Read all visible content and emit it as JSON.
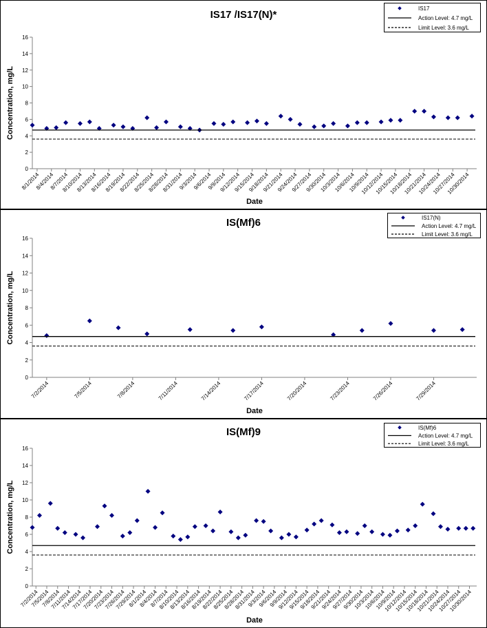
{
  "chart_data": [
    {
      "type": "scatter",
      "title": "IS17 /IS17(N)*",
      "xlabel": "Date",
      "ylabel": "Concentration, mg/L",
      "ylim": [
        0,
        16
      ],
      "yticks": [
        "0",
        "2",
        "4",
        "6",
        "8",
        "10",
        "12",
        "14",
        "16"
      ],
      "xlim": [
        "2014-07-31",
        "2014-11-01"
      ],
      "x_tick_labels": [
        "8/1/2014",
        "8/4/2014",
        "8/7/2014",
        "8/10/2014",
        "8/13/2014",
        "8/16/2014",
        "8/19/2014",
        "8/22/2014",
        "8/25/2014",
        "8/28/2014",
        "8/31/2014",
        "9/3/2014",
        "9/6/2014",
        "9/9/2014",
        "9/12/2014",
        "9/15/2014",
        "9/18/2014",
        "9/21/2014",
        "9/24/2014",
        "9/27/2014",
        "9/30/2014",
        "10/3/2014",
        "10/6/2014",
        "10/9/2014",
        "10/12/2014",
        "10/15/2014",
        "10/18/2014",
        "10/21/2014",
        "10/24/2014",
        "10/27/2014",
        "10/30/2014"
      ],
      "x_tick_dates": [
        "2014-08-01",
        "2014-08-04",
        "2014-08-07",
        "2014-08-10",
        "2014-08-13",
        "2014-08-16",
        "2014-08-19",
        "2014-08-22",
        "2014-08-25",
        "2014-08-28",
        "2014-08-31",
        "2014-09-03",
        "2014-09-06",
        "2014-09-09",
        "2014-09-12",
        "2014-09-15",
        "2014-09-18",
        "2014-09-21",
        "2014-09-24",
        "2014-09-27",
        "2014-09-30",
        "2014-10-03",
        "2014-10-06",
        "2014-10-09",
        "2014-10-12",
        "2014-10-15",
        "2014-10-18",
        "2014-10-21",
        "2014-10-24",
        "2014-10-27",
        "2014-10-30"
      ],
      "grid": false,
      "legend_position": "top-right",
      "series": [
        {
          "name": "IS17",
          "kind": "points",
          "color": "#000080",
          "x": [
            "2014-07-31",
            "2014-08-03",
            "2014-08-05",
            "2014-08-07",
            "2014-08-10",
            "2014-08-12",
            "2014-08-14",
            "2014-08-17",
            "2014-08-19",
            "2014-08-21",
            "2014-08-24",
            "2014-08-26",
            "2014-08-28",
            "2014-08-31",
            "2014-09-02",
            "2014-09-04",
            "2014-09-07",
            "2014-09-09",
            "2014-09-11",
            "2014-09-14",
            "2014-09-16",
            "2014-09-18",
            "2014-09-21",
            "2014-09-23",
            "2014-09-25",
            "2014-09-28",
            "2014-09-30",
            "2014-10-02",
            "2014-10-05",
            "2014-10-07",
            "2014-10-09",
            "2014-10-12",
            "2014-10-14",
            "2014-10-16",
            "2014-10-19",
            "2014-10-21",
            "2014-10-23",
            "2014-10-26",
            "2014-10-28",
            "2014-10-31"
          ],
          "y": [
            5.3,
            4.9,
            5.0,
            5.6,
            5.5,
            5.7,
            4.9,
            5.3,
            5.1,
            4.9,
            6.2,
            5.0,
            5.7,
            5.1,
            4.9,
            4.7,
            5.5,
            5.4,
            5.7,
            5.6,
            5.8,
            5.5,
            6.4,
            6.0,
            5.4,
            5.1,
            5.2,
            5.5,
            5.2,
            5.6,
            5.6,
            5.7,
            5.9,
            5.9,
            7.0,
            7.0,
            6.3,
            6.2,
            6.2,
            6.4
          ]
        },
        {
          "name": "Action Level: 4.7 mg/L",
          "kind": "hline",
          "style": "solid",
          "y": 4.7,
          "color": "#000000"
        },
        {
          "name": "Limit Level: 3.6 mg/L",
          "kind": "hline",
          "style": "dashed",
          "y": 3.6,
          "color": "#000000"
        }
      ]
    },
    {
      "type": "scatter",
      "title": "IS(Mf)6",
      "xlabel": "Date",
      "ylabel": "Concentration, mg/L",
      "ylim": [
        0,
        16
      ],
      "yticks": [
        "0",
        "2",
        "4",
        "6",
        "8",
        "10",
        "12",
        "14",
        "16"
      ],
      "xlim": [
        "2014-07-01",
        "2014-08-01"
      ],
      "x_tick_labels": [
        "7/2/2014",
        "7/5/2014",
        "7/8/2014",
        "7/11/2014",
        "7/14/2014",
        "7/17/2014",
        "7/20/2014",
        "7/23/2014",
        "7/26/2014",
        "7/29/2014"
      ],
      "x_tick_dates": [
        "2014-07-02",
        "2014-07-05",
        "2014-07-08",
        "2014-07-11",
        "2014-07-14",
        "2014-07-17",
        "2014-07-20",
        "2014-07-23",
        "2014-07-26",
        "2014-07-29"
      ],
      "grid": false,
      "legend_position": "top-right",
      "series": [
        {
          "name": "IS17(N)",
          "kind": "points",
          "color": "#000080",
          "x": [
            "2014-07-02",
            "2014-07-05",
            "2014-07-07",
            "2014-07-09",
            "2014-07-12",
            "2014-07-15",
            "2014-07-17",
            "2014-07-22",
            "2014-07-24",
            "2014-07-26",
            "2014-07-29",
            "2014-07-31"
          ],
          "y": [
            4.8,
            6.5,
            5.7,
            5.0,
            5.5,
            5.4,
            5.8,
            4.9,
            5.4,
            6.2,
            5.4,
            5.5
          ]
        },
        {
          "name": "Action Level: 4.7 mg/L",
          "kind": "hline",
          "style": "solid",
          "y": 4.7,
          "color": "#000000"
        },
        {
          "name": "Limit Level: 3.6 mg/L",
          "kind": "hline",
          "style": "dashed",
          "y": 3.6,
          "color": "#000000"
        }
      ]
    },
    {
      "type": "scatter",
      "title": "IS(Mf)9",
      "xlabel": "Date",
      "ylabel": "Concentration, mg/L",
      "ylim": [
        0,
        16
      ],
      "yticks": [
        "0",
        "2",
        "4",
        "6",
        "8",
        "10",
        "12",
        "14",
        "16"
      ],
      "xlim": [
        "2014-07-01",
        "2014-11-01"
      ],
      "x_tick_labels": [
        "7/2/2014",
        "7/5/2014",
        "7/8/2014",
        "7/11/2014",
        "7/14/2014",
        "7/17/2014",
        "7/20/2014",
        "7/23/2014",
        "7/26/2014",
        "7/29/2014",
        "8/1/2014",
        "8/4/2014",
        "8/7/2014",
        "8/10/2014",
        "8/13/2014",
        "8/16/2014",
        "8/19/2014",
        "8/22/2014",
        "8/25/2014",
        "8/28/2014",
        "8/31/2014",
        "9/3/2014",
        "9/6/2014",
        "9/9/2014",
        "9/12/2014",
        "9/15/2014",
        "9/18/2014",
        "9/21/2014",
        "9/24/2014",
        "9/27/2014",
        "9/30/2014",
        "10/3/2014",
        "10/6/2014",
        "10/9/2014",
        "10/12/2014",
        "10/15/2014",
        "10/18/2014",
        "10/21/2014",
        "10/24/2014",
        "10/27/2014",
        "10/30/2014"
      ],
      "x_tick_dates": [
        "2014-07-02",
        "2014-07-05",
        "2014-07-08",
        "2014-07-11",
        "2014-07-14",
        "2014-07-17",
        "2014-07-20",
        "2014-07-23",
        "2014-07-26",
        "2014-07-29",
        "2014-08-01",
        "2014-08-04",
        "2014-08-07",
        "2014-08-10",
        "2014-08-13",
        "2014-08-16",
        "2014-08-19",
        "2014-08-22",
        "2014-08-25",
        "2014-08-28",
        "2014-08-31",
        "2014-09-03",
        "2014-09-06",
        "2014-09-09",
        "2014-09-12",
        "2014-09-15",
        "2014-09-18",
        "2014-09-21",
        "2014-09-24",
        "2014-09-27",
        "2014-09-30",
        "2014-10-03",
        "2014-10-06",
        "2014-10-09",
        "2014-10-12",
        "2014-10-15",
        "2014-10-18",
        "2014-10-21",
        "2014-10-24",
        "2014-10-27",
        "2014-10-30"
      ],
      "grid": false,
      "legend_position": "top-right",
      "series": [
        {
          "name": "IS(Mf)6",
          "kind": "points",
          "color": "#000080",
          "x": [
            "2014-07-01",
            "2014-07-03",
            "2014-07-06",
            "2014-07-08",
            "2014-07-10",
            "2014-07-13",
            "2014-07-15",
            "2014-07-19",
            "2014-07-21",
            "2014-07-23",
            "2014-07-26",
            "2014-07-28",
            "2014-07-30",
            "2014-08-02",
            "2014-08-04",
            "2014-08-06",
            "2014-08-09",
            "2014-08-11",
            "2014-08-13",
            "2014-08-15",
            "2014-08-18",
            "2014-08-20",
            "2014-08-22",
            "2014-08-25",
            "2014-08-27",
            "2014-08-29",
            "2014-09-01",
            "2014-09-03",
            "2014-09-05",
            "2014-09-08",
            "2014-09-10",
            "2014-09-12",
            "2014-09-15",
            "2014-09-17",
            "2014-09-19",
            "2014-09-22",
            "2014-09-24",
            "2014-09-26",
            "2014-09-29",
            "2014-10-01",
            "2014-10-03",
            "2014-10-06",
            "2014-10-08",
            "2014-10-10",
            "2014-10-13",
            "2014-10-15",
            "2014-10-17",
            "2014-10-20",
            "2014-10-22",
            "2014-10-24",
            "2014-10-27",
            "2014-10-29",
            "2014-10-31"
          ],
          "y": [
            6.8,
            8.2,
            9.6,
            6.7,
            6.2,
            6.0,
            5.6,
            6.9,
            9.3,
            8.2,
            5.8,
            6.2,
            7.6,
            11.0,
            6.8,
            8.5,
            5.8,
            5.4,
            5.7,
            6.9,
            7.0,
            6.4,
            8.6,
            6.3,
            5.6,
            5.9,
            7.6,
            7.5,
            6.4,
            5.6,
            6.0,
            5.7,
            6.5,
            7.2,
            7.6,
            7.1,
            6.2,
            6.3,
            6.1,
            7.0,
            6.3,
            6.0,
            5.9,
            6.4,
            6.5,
            7.0,
            9.5,
            8.4,
            6.9,
            6.6,
            6.7,
            6.7,
            6.7
          ]
        },
        {
          "name": "Action Level: 4.7 mg/L",
          "kind": "hline",
          "style": "solid",
          "y": 4.7,
          "color": "#000000"
        },
        {
          "name": "Limit Level: 3.6 mg/L",
          "kind": "hline",
          "style": "dashed",
          "y": 3.6,
          "color": "#000000"
        }
      ]
    }
  ]
}
